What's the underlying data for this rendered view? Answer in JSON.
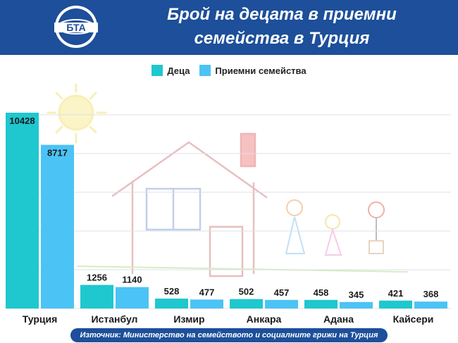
{
  "header": {
    "title_line1": "Брой на децата в приемни",
    "title_line2": "семейства в Турция",
    "logo_text": "БТА"
  },
  "source": "Източник: Министерство на семейството и социалните грижи на Турция",
  "colors": {
    "header_bg": "#1d4f9a",
    "children": "#1fc7cf",
    "families": "#4cc3f5"
  },
  "chart_data": {
    "type": "bar",
    "categories": [
      "Турция",
      "Истанбул",
      "Измир",
      "Анкара",
      "Адана",
      "Кайсери"
    ],
    "series": [
      {
        "name": "Деца",
        "values": [
          10428,
          1256,
          528,
          502,
          458,
          421
        ]
      },
      {
        "name": "Приемни семейства",
        "values": [
          8717,
          1140,
          477,
          457,
          345,
          368
        ]
      }
    ],
    "grid": true,
    "legend": "top-center"
  }
}
